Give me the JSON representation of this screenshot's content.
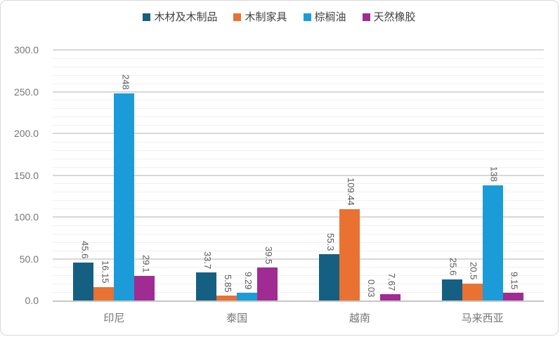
{
  "chart_data": {
    "type": "bar",
    "categories": [
      "印尼",
      "泰国",
      "越南",
      "马来西亚"
    ],
    "series": [
      {
        "name": "木材及木制品",
        "color": "#156082",
        "values": [
          45.6,
          33.7,
          55.3,
          25.6
        ],
        "labels": [
          "45.6",
          "33.7",
          "55.3",
          "25.6"
        ]
      },
      {
        "name": "木制家具",
        "color": "#E97132",
        "values": [
          16.15,
          5.85,
          109.44,
          20.5
        ],
        "labels": [
          "16.15",
          "5.85",
          "109.44",
          "20.5"
        ]
      },
      {
        "name": "棕榈油",
        "color": "#1B9CD8",
        "values": [
          248,
          9.29,
          0.03,
          138
        ],
        "labels": [
          "248",
          "9.29",
          "0.03",
          "138"
        ]
      },
      {
        "name": "天然橡胶",
        "color": "#A02B93",
        "values": [
          29.1,
          39.5,
          7.67,
          9.15
        ],
        "labels": [
          "29.1",
          "39.5",
          "7.67",
          "9.15"
        ]
      }
    ],
    "title": "",
    "xlabel": "",
    "ylabel": "",
    "ylim": [
      0,
      300
    ],
    "y_major_step": 50,
    "y_minor_step": 10,
    "y_tick_labels": [
      "0.0",
      "50.0",
      "100.0",
      "150.0",
      "200.0",
      "250.0",
      "300.0"
    ],
    "grid": "major and minor horizontal gridlines",
    "legend_position": "top",
    "data_label_rotation": "vertical"
  },
  "colors": {
    "background": "#FFFFFF",
    "frame_border": "#D9D9D9",
    "major_grid": "#D8D8D8",
    "minor_grid": "#F0F0F0",
    "axis_line": "#C6C6C6",
    "tick_text": "#757575",
    "data_label_text": "#595959",
    "legend_text": "#404040"
  }
}
